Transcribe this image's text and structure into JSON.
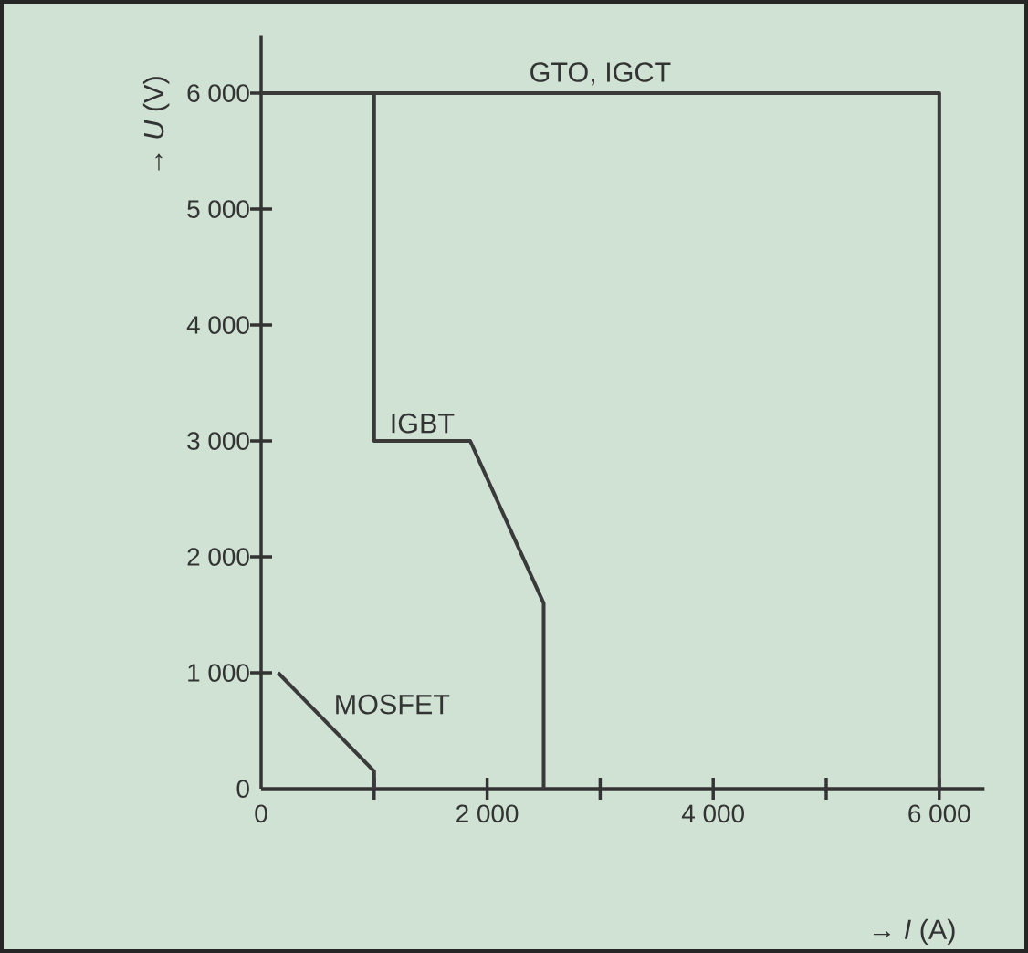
{
  "chart_data": {
    "type": "line",
    "xlabel": "→ *I* (A)",
    "ylabel": "→ *U* (V)",
    "xlim": [
      0,
      6400
    ],
    "ylim": [
      0,
      6500
    ],
    "xticks": [
      0,
      {
        "value": 1000,
        "label": null
      },
      {
        "value": 2000,
        "label": "2 000"
      },
      {
        "value": 3000,
        "label": null
      },
      {
        "value": 4000,
        "label": "4 000"
      },
      {
        "value": 5000,
        "label": null
      },
      {
        "value": 6000,
        "label": "6 000"
      }
    ],
    "yticks": [
      0,
      {
        "value": 1000,
        "label": "1 000"
      },
      {
        "value": 2000,
        "label": "2 000"
      },
      {
        "value": 3000,
        "label": "3 000"
      },
      {
        "value": 4000,
        "label": "4 000"
      },
      {
        "value": 5000,
        "label": "5 000"
      },
      {
        "value": 6000,
        "label": "6 000"
      }
    ],
    "grid": false,
    "legend": false,
    "marker": "none",
    "line_style": "solid",
    "series": [
      {
        "name": "GTO, IGCT",
        "color": "#3a3a3a",
        "x": [
          0,
          6000,
          6000
        ],
        "values": [
          6000,
          6000,
          0
        ]
      },
      {
        "name": "IGBT",
        "color": "#3a3a3a",
        "x": [
          1000,
          1000,
          1850,
          2500,
          2500
        ],
        "values": [
          6000,
          3000,
          3000,
          1600,
          0
        ]
      },
      {
        "name": "MOSFET",
        "color": "#3a3a3a",
        "x": [
          150,
          1000,
          1000
        ],
        "values": [
          1000,
          150,
          0
        ]
      }
    ]
  }
}
